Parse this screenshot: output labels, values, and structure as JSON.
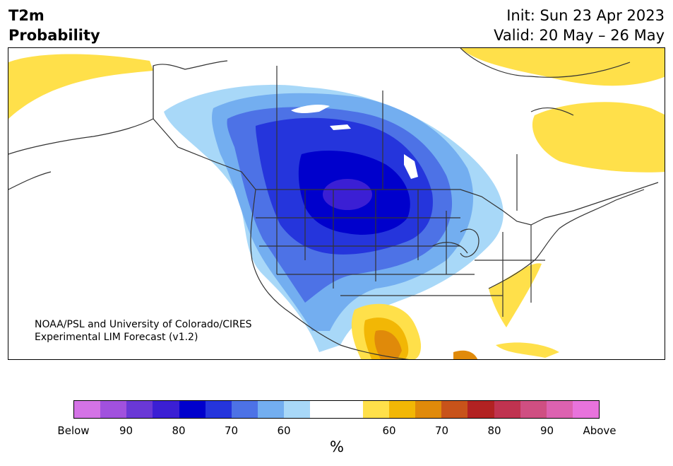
{
  "header": {
    "variable": "T2m",
    "type": "Probability",
    "init": "Init: Sun 23 Apr 2023",
    "valid": "Valid: 20 May – 26 May"
  },
  "credit": {
    "line1": "NOAA/PSL and University of Colorado/CIRES",
    "line2": "Experimental LIM Forecast (v1.2)"
  },
  "colorbar": {
    "unit": "%",
    "colors": [
      "#d473e6",
      "#a151de",
      "#6a38d6",
      "#3b1fd4",
      "#0000cc",
      "#2535dc",
      "#4d72e6",
      "#73aef0",
      "#a8d8f8",
      "#ffffff",
      "#ffffff",
      "#ffe04a",
      "#f2b705",
      "#e08a0a",
      "#c8531a",
      "#b22222",
      "#c03350",
      "#cf4f82",
      "#dc62b0",
      "#e873dc"
    ],
    "labels": [
      "Below",
      "90",
      "80",
      "70",
      "60",
      "60",
      "70",
      "80",
      "90",
      "Above"
    ]
  },
  "legend": {
    "below_color": "#0000cc",
    "above_color": "#f2b705"
  }
}
